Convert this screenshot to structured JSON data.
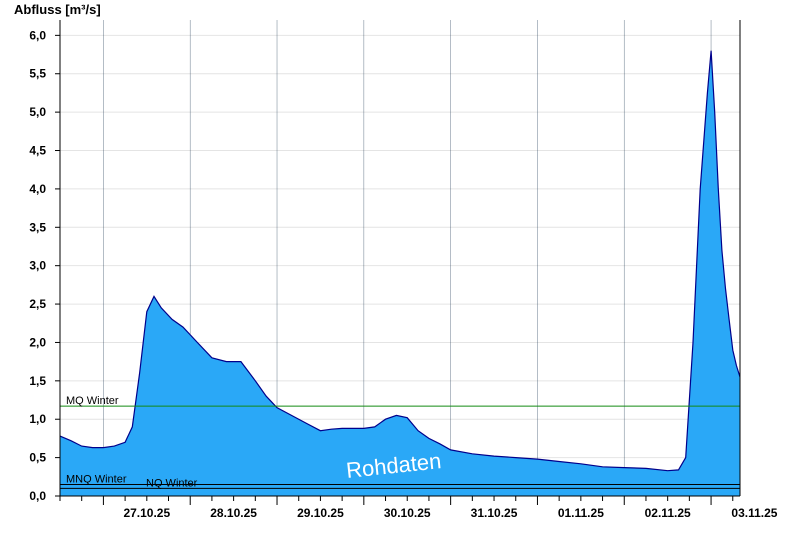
{
  "chart_data": {
    "type": "area",
    "ylabel": "Abfluss [m³/s]",
    "xlabel": "",
    "ylim": [
      0,
      6.2
    ],
    "yticks": [
      0.0,
      0.5,
      1.0,
      1.5,
      2.0,
      2.5,
      3.0,
      3.5,
      4.0,
      4.5,
      5.0,
      5.5,
      6.0
    ],
    "ytick_labels": [
      "0,0",
      "0,5",
      "1,0",
      "1,5",
      "2,0",
      "2,5",
      "3,0",
      "3,5",
      "4,0",
      "4,5",
      "5,0",
      "5,5",
      "6,0"
    ],
    "x_start": "26.10.25 12:00",
    "x_end": "03.11.25 08:00",
    "day_labels": [
      "27.10.25",
      "28.10.25",
      "29.10.25",
      "30.10.25",
      "31.10.25",
      "01.11.25",
      "02.11.25",
      "03.11.25"
    ],
    "grid": true,
    "fill_color": "#2aa8f7",
    "line_color": "#00008b",
    "reference_lines": [
      {
        "label": "MQ Winter",
        "value": 1.17,
        "color": "#138a13"
      },
      {
        "label": "MNQ Winter",
        "value": 0.15,
        "color": "#000000"
      },
      {
        "label": "NQ Winter",
        "value": 0.1,
        "color": "#000000"
      }
    ],
    "watermark": "Rohdaten",
    "series": [
      {
        "x": [
          "26.10.25 12:00",
          "26.10.25 15:00",
          "26.10.25 18:00",
          "26.10.25 21:00",
          "27.10.25 00:00",
          "27.10.25 03:00",
          "27.10.25 06:00",
          "27.10.25 08:00",
          "27.10.25 10:00",
          "27.10.25 12:00",
          "27.10.25 14:00",
          "27.10.25 16:00",
          "27.10.25 19:00",
          "27.10.25 22:00",
          "28.10.25 02:00",
          "28.10.25 06:00",
          "28.10.25 10:00",
          "28.10.25 14:00",
          "28.10.25 18:00",
          "28.10.25 21:00",
          "29.10.25 00:00",
          "29.10.25 04:00",
          "29.10.25 08:00",
          "29.10.25 12:00",
          "29.10.25 15:00",
          "29.10.25 18:00",
          "29.10.25 21:00",
          "30.10.25 00:00",
          "30.10.25 03:00",
          "30.10.25 06:00",
          "30.10.25 09:00",
          "30.10.25 12:00",
          "30.10.25 15:00",
          "30.10.25 18:00",
          "30.10.25 21:00",
          "31.10.25 00:00",
          "31.10.25 06:00",
          "31.10.25 12:00",
          "31.10.25 18:00",
          "01.11.25 00:00",
          "01.11.25 06:00",
          "01.11.25 12:00",
          "01.11.25 18:00",
          "02.11.25 00:00",
          "02.11.25 06:00",
          "02.11.25 12:00",
          "02.11.25 15:00",
          "02.11.25 17:00",
          "02.11.25 19:00",
          "02.11.25 21:00",
          "02.11.25 23:00",
          "03.11.25 00:00",
          "03.11.25 01:00",
          "03.11.25 02:00",
          "03.11.25 03:00",
          "03.11.25 04:00",
          "03.11.25 05:00",
          "03.11.25 06:00",
          "03.11.25 07:00",
          "03.11.25 08:00"
        ],
        "y": [
          0.78,
          0.72,
          0.65,
          0.63,
          0.63,
          0.65,
          0.7,
          0.9,
          1.6,
          2.4,
          2.6,
          2.45,
          2.3,
          2.2,
          2.0,
          1.8,
          1.75,
          1.75,
          1.5,
          1.3,
          1.15,
          1.05,
          0.95,
          0.85,
          0.87,
          0.88,
          0.88,
          0.88,
          0.9,
          1.0,
          1.05,
          1.02,
          0.85,
          0.75,
          0.68,
          0.6,
          0.55,
          0.52,
          0.5,
          0.48,
          0.45,
          0.42,
          0.38,
          0.37,
          0.36,
          0.33,
          0.34,
          0.5,
          2.0,
          4.0,
          5.25,
          5.8,
          5.0,
          4.0,
          3.2,
          2.7,
          2.3,
          1.9,
          1.7,
          1.55
        ]
      }
    ]
  }
}
